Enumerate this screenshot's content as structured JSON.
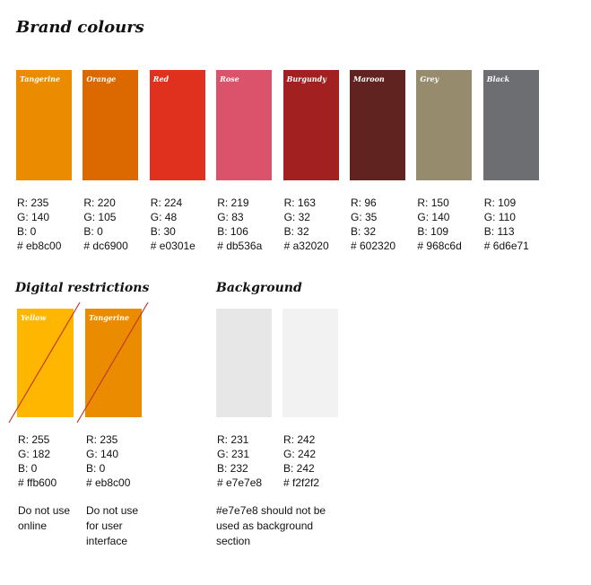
{
  "title": "Brand colours",
  "brand": [
    {
      "name": "Tangerine",
      "color": "#eb8c00",
      "lines": [
        "R: 235",
        "G: 140",
        "B: 0",
        "# eb8c00"
      ]
    },
    {
      "name": "Orange",
      "color": "#dc6900",
      "lines": [
        "R: 220",
        "G: 105",
        "B: 0",
        "# dc6900"
      ]
    },
    {
      "name": "Red",
      "color": "#e0301e",
      "lines": [
        "R: 224",
        "G: 48",
        "B: 30",
        "# e0301e"
      ]
    },
    {
      "name": "Rose",
      "color": "#db536a",
      "lines": [
        "R: 219",
        "G: 83",
        "B: 106",
        "# db536a"
      ]
    },
    {
      "name": "Burgundy",
      "color": "#a32020",
      "lines": [
        "R: 163",
        "G: 32",
        "B: 32",
        "# a32020"
      ]
    },
    {
      "name": "Maroon",
      "color": "#602320",
      "lines": [
        "R: 96",
        "G: 35",
        "B: 32",
        "# 602320"
      ]
    },
    {
      "name": "Grey",
      "color": "#968c6d",
      "lines": [
        "R: 150",
        "G: 140",
        "B: 109",
        "# 968c6d"
      ]
    },
    {
      "name": "Black",
      "color": "#6d6e71",
      "lines": [
        "R: 109",
        "G: 110",
        "B: 113",
        "# 6d6e71"
      ]
    }
  ],
  "digital": {
    "title": "Digital restrictions",
    "swatches": [
      {
        "name": "Yellow",
        "color": "#ffb600",
        "lines": [
          "R: 255",
          "G: 182",
          "B: 0",
          "# ffb600"
        ],
        "note": "Do not use\nonline"
      },
      {
        "name": "Tangerine",
        "color": "#eb8c00",
        "lines": [
          "R: 235",
          "G: 140",
          "B: 0",
          "# eb8c00"
        ],
        "note": "Do not use\nfor user\ninterface"
      }
    ]
  },
  "background": {
    "title": "Background",
    "swatches": [
      {
        "color": "#e7e7e8",
        "lines": [
          "R: 231",
          "G: 231",
          "B: 232",
          "# e7e7e8"
        ]
      },
      {
        "color": "#f2f2f2",
        "lines": [
          "R: 242",
          "G: 242",
          "B: 242",
          "# f2f2f2"
        ]
      }
    ],
    "note": "#e7e7e8 should not be\nused as background\nsection"
  }
}
